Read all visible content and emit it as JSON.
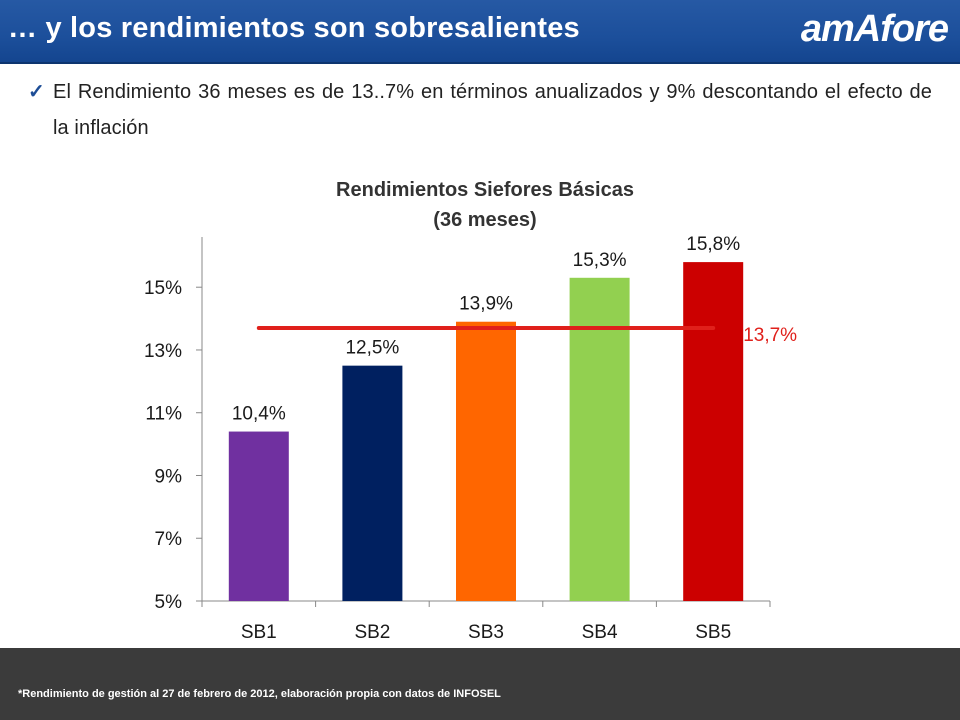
{
  "header": {
    "title": "… y los rendimientos son sobresalientes",
    "logo_text": "amAfore"
  },
  "bullet": {
    "check_icon": "checkmark-icon",
    "text": "El Rendimiento 36 meses es de 13..7% en términos anualizados y 9% descontando el efecto de la inflación"
  },
  "footer": {
    "note": "*Rendimiento de gestión al 27 de febrero de 2012, elaboración propia con datos de INFOSEL"
  },
  "chart_data": {
    "type": "bar",
    "title": "Rendimientos Siefores Básicas",
    "subtitle": "(36 meses)",
    "categories": [
      "SB1",
      "SB2",
      "SB3",
      "SB4",
      "SB5"
    ],
    "values": [
      10.4,
      12.5,
      13.9,
      15.3,
      15.8
    ],
    "data_labels": [
      "10,4%",
      "12,5%",
      "13,9%",
      "15,3%",
      "15,8%"
    ],
    "colors": [
      "#7030a0",
      "#002060",
      "#ff6600",
      "#92d050",
      "#cc0000"
    ],
    "ylim": [
      5,
      16
    ],
    "yticks": [
      5,
      7,
      9,
      11,
      13,
      15
    ],
    "ytick_labels": [
      "5%",
      "7%",
      "9%",
      "11%",
      "13%",
      "15%"
    ],
    "xlabel": "",
    "ylabel": "",
    "grid": false,
    "reference_line": {
      "value": 13.7,
      "label": "13,7%",
      "color": "#e0201b"
    }
  }
}
